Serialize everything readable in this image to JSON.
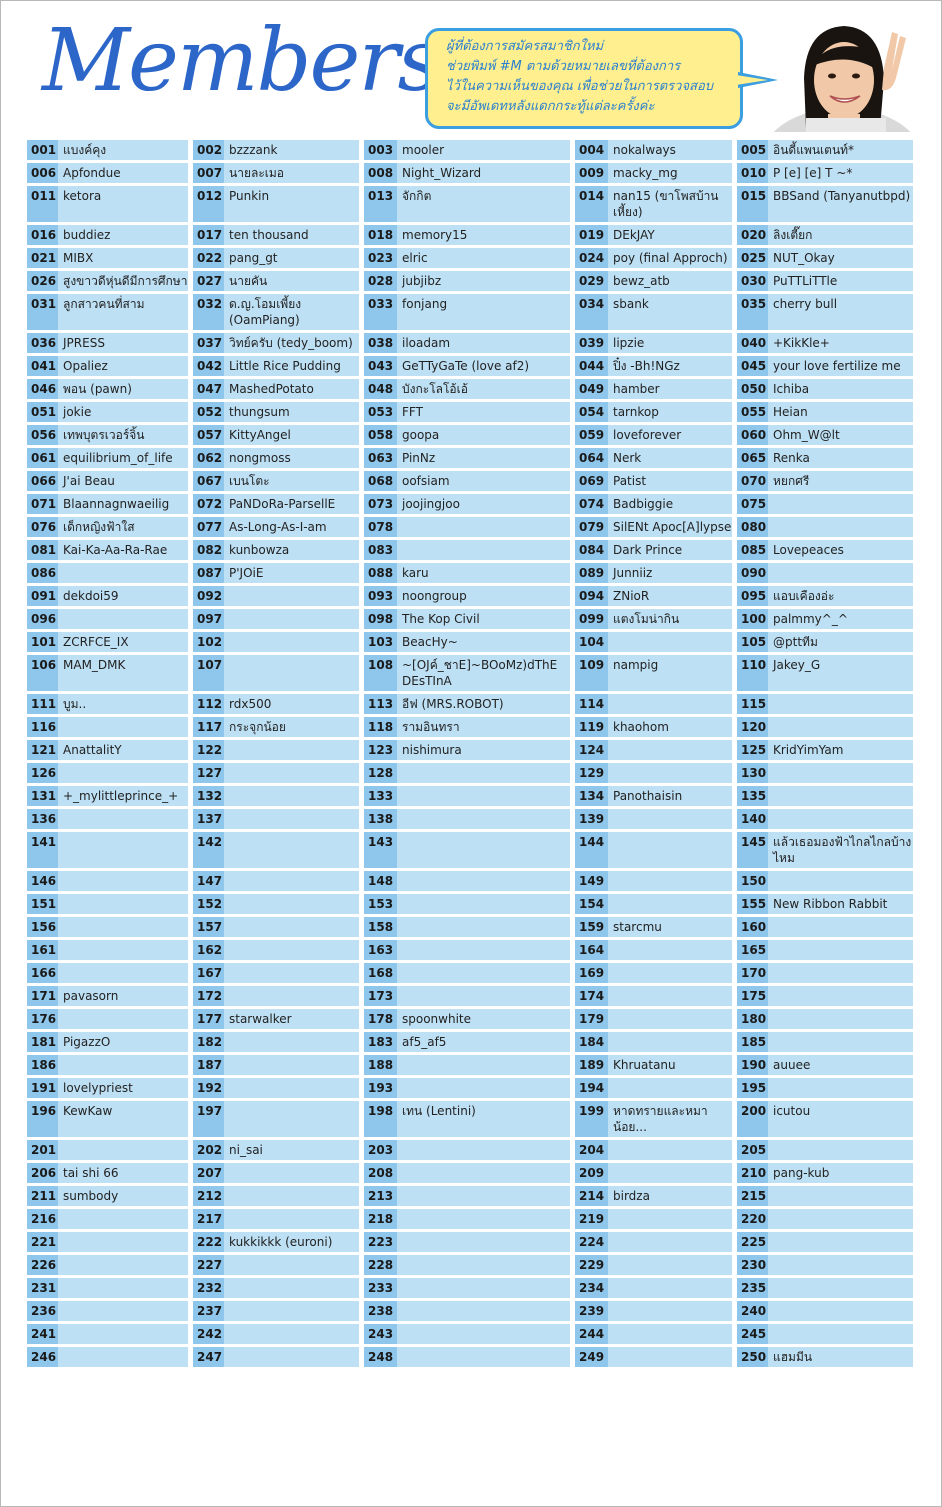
{
  "header": {
    "title": "Members",
    "bubble_lines": [
      "ผู้ที่ต้องการสมัครสมาชิกใหม่",
      "ช่วยพิมพ์ #M ตามด้วยหมายเลขที่ต้องการ",
      "ไว้ในความเห็นของคุณ เพื่อช่วยในการตรวจสอบ",
      "จะมีอัพเดทหลังแดกกระทู้แต่ละครั้งค่ะ"
    ],
    "photo_icon": "smiling-girl-peace-sign-photo"
  },
  "colors": {
    "title": "#2c66c9",
    "cell": "#bee0f4",
    "number": "#8fc7ec",
    "bubble_fill": "#ffef8e",
    "bubble_border": "#3b9ee0"
  },
  "members": [
    [
      "001",
      "แบงค์คุง"
    ],
    [
      "002",
      "bzzzank"
    ],
    [
      "003",
      "mooler"
    ],
    [
      "004",
      "nokalways"
    ],
    [
      "005",
      "อินดี้แพนเตนท์*"
    ],
    [
      "006",
      "Apfondue"
    ],
    [
      "007",
      "นายละเมอ"
    ],
    [
      "008",
      "Night_Wizard"
    ],
    [
      "009",
      "macky_mg"
    ],
    [
      "010",
      "P [e] [e] T ~*"
    ],
    [
      "011",
      "ketora"
    ],
    [
      "012",
      "Punkin"
    ],
    [
      "013",
      "จักกิต"
    ],
    [
      "014",
      "nan15 (ขาโพสบ้านเหี้ยง)"
    ],
    [
      "015",
      "BBSand (Tanyanutbpd)"
    ],
    [
      "016",
      "buddiez"
    ],
    [
      "017",
      "ten thousand"
    ],
    [
      "018",
      "memory15"
    ],
    [
      "019",
      "DEkJAY"
    ],
    [
      "020",
      "ลิงเตี๊ยก"
    ],
    [
      "021",
      "MIBX"
    ],
    [
      "022",
      "pang_gt"
    ],
    [
      "023",
      "elric"
    ],
    [
      "024",
      "poy (final Approch)"
    ],
    [
      "025",
      "NUT_Okay"
    ],
    [
      "026",
      "สูงขาวดีหุ่นดีมีการศึกษา"
    ],
    [
      "027",
      "นายคัน"
    ],
    [
      "028",
      "jubjibz"
    ],
    [
      "029",
      "bewz_atb"
    ],
    [
      "030",
      "PuTTLiTTle"
    ],
    [
      "031",
      "ลูกสาวคนที่สาม"
    ],
    [
      "032",
      "ด.ญ.โอมเพี้ยง (OamPiang)"
    ],
    [
      "033",
      "fonjang"
    ],
    [
      "034",
      "sbank"
    ],
    [
      "035",
      "cherry bull"
    ],
    [
      "036",
      "JPRESS"
    ],
    [
      "037",
      "วิทย์ครับ (tedy_boom)"
    ],
    [
      "038",
      "iloadam"
    ],
    [
      "039",
      "lipzie"
    ],
    [
      "040",
      "+KikKle+"
    ],
    [
      "041",
      "Opaliez"
    ],
    [
      "042",
      "Little Rice Pudding"
    ],
    [
      "043",
      "GeTTyGaTe (love af2)"
    ],
    [
      "044",
      "ปิ๋ง -Bh!NGz"
    ],
    [
      "045",
      "your love fertilize me"
    ],
    [
      "046",
      "พอน (pawn)"
    ],
    [
      "047",
      "MashedPotato"
    ],
    [
      "048",
      "บังกะโลโอ้เอ้"
    ],
    [
      "049",
      "hamber"
    ],
    [
      "050",
      "Ichiba"
    ],
    [
      "051",
      "jokie"
    ],
    [
      "052",
      "thungsum"
    ],
    [
      "053",
      "FFT"
    ],
    [
      "054",
      "tarnkop"
    ],
    [
      "055",
      "Heian"
    ],
    [
      "056",
      "เทพบุตรเวอร์จิ้น"
    ],
    [
      "057",
      "KittyAngel"
    ],
    [
      "058",
      "goopa"
    ],
    [
      "059",
      "loveforever"
    ],
    [
      "060",
      "Ohm_W@lt"
    ],
    [
      "061",
      "equilibrium_of_life"
    ],
    [
      "062",
      "nongmoss"
    ],
    [
      "063",
      "PinNz"
    ],
    [
      "064",
      "Nerk"
    ],
    [
      "065",
      "Renka"
    ],
    [
      "066",
      "J'ai Beau"
    ],
    [
      "067",
      "เบนโตะ"
    ],
    [
      "068",
      "oofsiam"
    ],
    [
      "069",
      "Patist"
    ],
    [
      "070",
      "หยกศรี"
    ],
    [
      "071",
      "Blaannagnwaeilig"
    ],
    [
      "072",
      "PaNDoRa-ParsellE"
    ],
    [
      "073",
      "joojingjoo"
    ],
    [
      "074",
      "Badbiggie"
    ],
    [
      "075",
      ""
    ],
    [
      "076",
      "เด็กหญิงฟ้าใส"
    ],
    [
      "077",
      "As-Long-As-I-am"
    ],
    [
      "078",
      ""
    ],
    [
      "079",
      "SilENt Apoc[A]lypse"
    ],
    [
      "080",
      ""
    ],
    [
      "081",
      "Kai-Ka-Aa-Ra-Rae"
    ],
    [
      "082",
      "kunbowza"
    ],
    [
      "083",
      ""
    ],
    [
      "084",
      "Dark Prince"
    ],
    [
      "085",
      "Lovepeaces"
    ],
    [
      "086",
      ""
    ],
    [
      "087",
      "P'JOiE"
    ],
    [
      "088",
      "karu"
    ],
    [
      "089",
      "Junniiz"
    ],
    [
      "090",
      ""
    ],
    [
      "091",
      "dekdoi59"
    ],
    [
      "092",
      ""
    ],
    [
      "093",
      "noongroup"
    ],
    [
      "094",
      "ZNioR"
    ],
    [
      "095",
      "แอบเคืองอ่ะ"
    ],
    [
      "096",
      ""
    ],
    [
      "097",
      ""
    ],
    [
      "098",
      "The Kop Civil"
    ],
    [
      "099",
      "แตงโมน่ากิน"
    ],
    [
      "100",
      "palmmy^_^"
    ],
    [
      "101",
      "ZCRFCE_IX"
    ],
    [
      "102",
      ""
    ],
    [
      "103",
      "BeacHy~"
    ],
    [
      "104",
      ""
    ],
    [
      "105",
      "@pttทีม"
    ],
    [
      "106",
      "MAM_DMK"
    ],
    [
      "107",
      ""
    ],
    [
      "108",
      "~[OJค์_ชาE]~BOoMz)dThE DEsTInA"
    ],
    [
      "109",
      "nampig"
    ],
    [
      "110",
      "Jakey_G"
    ],
    [
      "111",
      "บูม.."
    ],
    [
      "112",
      "rdx500"
    ],
    [
      "113",
      "อีฟ (MRS.ROBOT)"
    ],
    [
      "114",
      ""
    ],
    [
      "115",
      ""
    ],
    [
      "116",
      ""
    ],
    [
      "117",
      "กระจุกน้อย"
    ],
    [
      "118",
      "รามอินทรา"
    ],
    [
      "119",
      "khaohom"
    ],
    [
      "120",
      ""
    ],
    [
      "121",
      "AnattalitY"
    ],
    [
      "122",
      ""
    ],
    [
      "123",
      "nishimura"
    ],
    [
      "124",
      ""
    ],
    [
      "125",
      "KridYimYam"
    ],
    [
      "126",
      ""
    ],
    [
      "127",
      ""
    ],
    [
      "128",
      ""
    ],
    [
      "129",
      ""
    ],
    [
      "130",
      ""
    ],
    [
      "131",
      "+_mylittleprince_+"
    ],
    [
      "132",
      ""
    ],
    [
      "133",
      ""
    ],
    [
      "134",
      "Panothaisin"
    ],
    [
      "135",
      ""
    ],
    [
      "136",
      ""
    ],
    [
      "137",
      ""
    ],
    [
      "138",
      ""
    ],
    [
      "139",
      ""
    ],
    [
      "140",
      ""
    ],
    [
      "141",
      ""
    ],
    [
      "142",
      ""
    ],
    [
      "143",
      ""
    ],
    [
      "144",
      ""
    ],
    [
      "145",
      "แล้วเธอมองฟ้าไกลไกลบ้างไหม"
    ],
    [
      "146",
      ""
    ],
    [
      "147",
      ""
    ],
    [
      "148",
      ""
    ],
    [
      "149",
      ""
    ],
    [
      "150",
      ""
    ],
    [
      "151",
      ""
    ],
    [
      "152",
      ""
    ],
    [
      "153",
      ""
    ],
    [
      "154",
      ""
    ],
    [
      "155",
      "New Ribbon Rabbit"
    ],
    [
      "156",
      ""
    ],
    [
      "157",
      ""
    ],
    [
      "158",
      ""
    ],
    [
      "159",
      "starcmu"
    ],
    [
      "160",
      ""
    ],
    [
      "161",
      ""
    ],
    [
      "162",
      ""
    ],
    [
      "163",
      ""
    ],
    [
      "164",
      ""
    ],
    [
      "165",
      ""
    ],
    [
      "166",
      ""
    ],
    [
      "167",
      ""
    ],
    [
      "168",
      ""
    ],
    [
      "169",
      ""
    ],
    [
      "170",
      ""
    ],
    [
      "171",
      "pavasorn"
    ],
    [
      "172",
      ""
    ],
    [
      "173",
      ""
    ],
    [
      "174",
      ""
    ],
    [
      "175",
      ""
    ],
    [
      "176",
      ""
    ],
    [
      "177",
      "starwalker"
    ],
    [
      "178",
      "spoonwhite"
    ],
    [
      "179",
      ""
    ],
    [
      "180",
      ""
    ],
    [
      "181",
      "PigazzO"
    ],
    [
      "182",
      ""
    ],
    [
      "183",
      "af5_af5"
    ],
    [
      "184",
      ""
    ],
    [
      "185",
      ""
    ],
    [
      "186",
      ""
    ],
    [
      "187",
      ""
    ],
    [
      "188",
      ""
    ],
    [
      "189",
      "Khruatanu"
    ],
    [
      "190",
      "auuee"
    ],
    [
      "191",
      "lovelypriest"
    ],
    [
      "192",
      ""
    ],
    [
      "193",
      ""
    ],
    [
      "194",
      ""
    ],
    [
      "195",
      ""
    ],
    [
      "196",
      "KewKaw"
    ],
    [
      "197",
      ""
    ],
    [
      "198",
      "เทน (Lentini)"
    ],
    [
      "199",
      "หาดทรายและหมาน้อย..."
    ],
    [
      "200",
      "icutou"
    ],
    [
      "201",
      ""
    ],
    [
      "202",
      "ni_sai"
    ],
    [
      "203",
      ""
    ],
    [
      "204",
      ""
    ],
    [
      "205",
      ""
    ],
    [
      "206",
      "tai shi 66"
    ],
    [
      "207",
      ""
    ],
    [
      "208",
      ""
    ],
    [
      "209",
      ""
    ],
    [
      "210",
      "pang-kub"
    ],
    [
      "211",
      "sumbody"
    ],
    [
      "212",
      ""
    ],
    [
      "213",
      ""
    ],
    [
      "214",
      "birdza"
    ],
    [
      "215",
      ""
    ],
    [
      "216",
      ""
    ],
    [
      "217",
      ""
    ],
    [
      "218",
      ""
    ],
    [
      "219",
      ""
    ],
    [
      "220",
      ""
    ],
    [
      "221",
      ""
    ],
    [
      "222",
      "kukkikkk (euroni)"
    ],
    [
      "223",
      ""
    ],
    [
      "224",
      ""
    ],
    [
      "225",
      ""
    ],
    [
      "226",
      ""
    ],
    [
      "227",
      ""
    ],
    [
      "228",
      ""
    ],
    [
      "229",
      ""
    ],
    [
      "230",
      ""
    ],
    [
      "231",
      ""
    ],
    [
      "232",
      ""
    ],
    [
      "233",
      ""
    ],
    [
      "234",
      ""
    ],
    [
      "235",
      ""
    ],
    [
      "236",
      ""
    ],
    [
      "237",
      ""
    ],
    [
      "238",
      ""
    ],
    [
      "239",
      ""
    ],
    [
      "240",
      ""
    ],
    [
      "241",
      ""
    ],
    [
      "242",
      ""
    ],
    [
      "243",
      ""
    ],
    [
      "244",
      ""
    ],
    [
      "245",
      ""
    ],
    [
      "246",
      ""
    ],
    [
      "247",
      ""
    ],
    [
      "248",
      ""
    ],
    [
      "249",
      ""
    ],
    [
      "250",
      "แฮมมีน"
    ]
  ]
}
